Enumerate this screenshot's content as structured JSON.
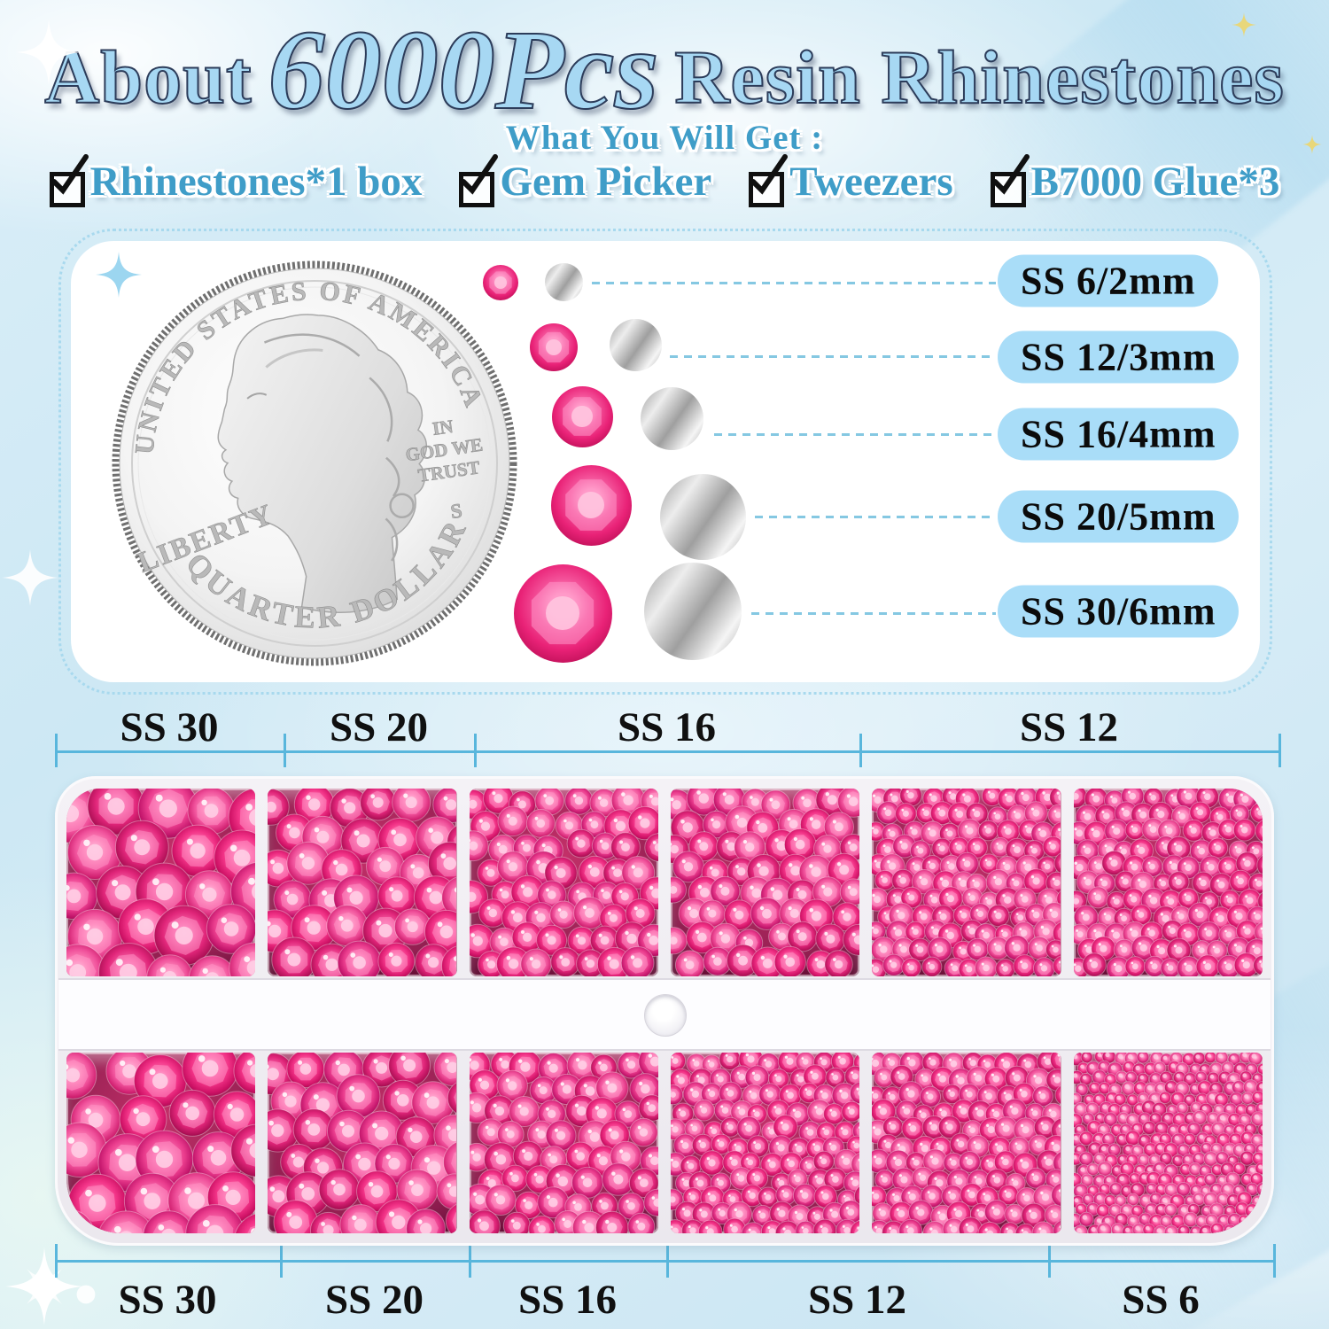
{
  "header": {
    "title": {
      "prefix": "About",
      "highlight": "6000Pcs",
      "suffix": "Resin Rhinestones"
    },
    "subtitle": "What You Will Get :",
    "checklist": [
      "Rhinestones*1 box",
      "Gem Picker",
      "Tweezers",
      "B7000 Glue*3"
    ]
  },
  "coin": {
    "top_text": "UNITED STATES OF AMERICA",
    "liberty": "LIBERTY",
    "motto": [
      "IN",
      "GOD WE",
      "TRUST"
    ],
    "mint_mark": "S",
    "bottom_text": "QUARTER DOLLAR"
  },
  "size_guide": {
    "rows": [
      {
        "label": "SS 6/2mm",
        "ss": 6,
        "mm": 2
      },
      {
        "label": "SS 12/3mm",
        "ss": 12,
        "mm": 3
      },
      {
        "label": "SS 16/4mm",
        "ss": 16,
        "mm": 4
      },
      {
        "label": "SS 20/5mm",
        "ss": 20,
        "mm": 5
      },
      {
        "label": "SS 30/6mm",
        "ss": 30,
        "mm": 6
      }
    ]
  },
  "tray": {
    "top_labels": [
      "SS 30",
      "SS 20",
      "SS 16",
      "SS 12"
    ],
    "bottom_labels": [
      "SS 30",
      "SS 20",
      "SS 16",
      "SS 12",
      "SS 6"
    ],
    "top_compartments": [
      "SS30",
      "SS20",
      "SS16",
      "SS16",
      "SS12",
      "SS12"
    ],
    "bottom_compartments": [
      "SS30",
      "SS20",
      "SS16",
      "SS12",
      "SS12",
      "SS6"
    ]
  },
  "colors": {
    "accent_blue": "#3f9dc8",
    "title_fill": "#a7d8f3",
    "pill_bg": "#a9ddf8",
    "bracket_line": "#58b6dc",
    "stone_pink": "#e92277",
    "stone_dark": "#8f0a42"
  }
}
